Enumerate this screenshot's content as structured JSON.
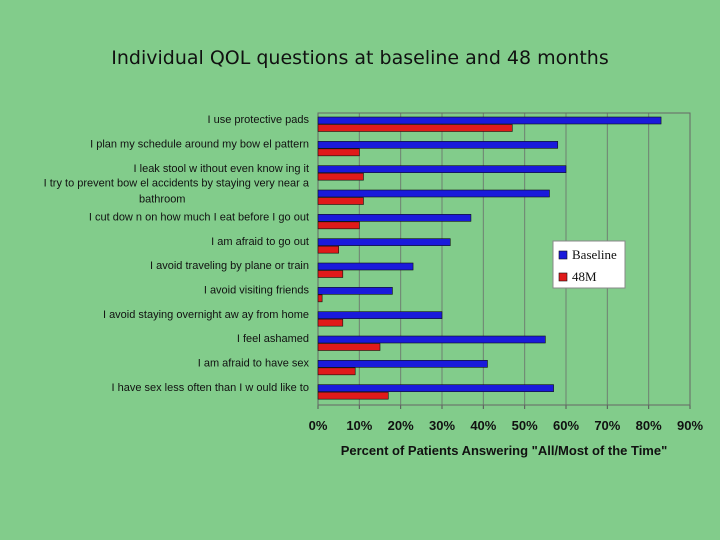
{
  "title": "Individual QOL questions at baseline and 48 months",
  "chart_data": {
    "type": "bar",
    "orientation": "horizontal",
    "categories": [
      "I use protective pads",
      "I plan my schedule around my bow el pattern",
      "I leak stool w ithout even know ing it",
      [
        "I try to prevent bow el accidents by staying very near a",
        "bathroom"
      ],
      "I cut dow n on how much I eat before I go out",
      "I am afraid to go out",
      "I avoid traveling by plane or train",
      "I avoid visiting friends",
      "I avoid staying overnight aw ay from home",
      "I feel ashamed",
      "I am afraid to have sex",
      "I have sex less often than I w ould like to"
    ],
    "series": [
      {
        "name": "Baseline",
        "color": "#1a1adb",
        "values": [
          83,
          58,
          60,
          56,
          37,
          32,
          23,
          18,
          30,
          55,
          41,
          57
        ]
      },
      {
        "name": "48M",
        "color": "#e01a1a",
        "values": [
          47,
          10,
          11,
          11,
          10,
          5,
          6,
          1,
          6,
          15,
          9,
          17
        ]
      }
    ],
    "xlabel": "Percent of Patients Answering \"All/Most of the Time\"",
    "xlim": [
      0,
      90
    ],
    "xticks": [
      "0%",
      "10%",
      "20%",
      "30%",
      "40%",
      "50%",
      "60%",
      "70%",
      "80%",
      "90%"
    ],
    "grid": true,
    "legend": "right"
  }
}
